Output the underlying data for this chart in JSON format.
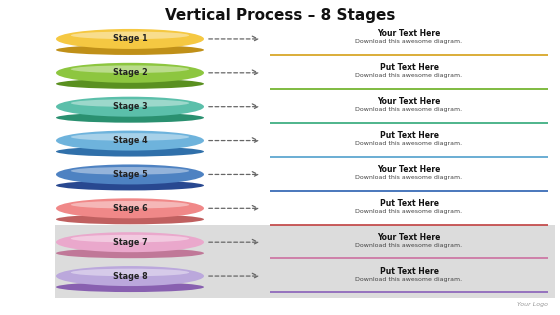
{
  "title": "Vertical Process – 8 Stages",
  "stages": [
    "Stage 1",
    "Stage 2",
    "Stage 3",
    "Stage 4",
    "Stage 5",
    "Stage 6",
    "Stage 7",
    "Stage 8"
  ],
  "ellipse_colors": [
    "#F5C842",
    "#8DC63F",
    "#5BBFAA",
    "#6EB3DC",
    "#4E82C2",
    "#F08888",
    "#EAA8CC",
    "#BBA8DC"
  ],
  "ellipse_shadow_colors": [
    "#C09018",
    "#5A9020",
    "#2A9070",
    "#3070AA",
    "#284890",
    "#C06060",
    "#C07898",
    "#8860B0"
  ],
  "line_colors": [
    "#D4A017",
    "#6AAF20",
    "#30A878",
    "#50A0CC",
    "#2A60B0",
    "#C04040",
    "#CC70A0",
    "#8860B8"
  ],
  "text_titles": [
    "Your Text Here",
    "Put Text Here",
    "Your Text Here",
    "Put Text Here",
    "Your Text Here",
    "Put Text Here",
    "Your Text Here",
    "Put Text Here"
  ],
  "text_sub": "Download this awesome diagram.",
  "bg_color": "#FFFFFF",
  "shadow_band_color": "#DCDCDC",
  "logo_text": "Your Logo",
  "arrow_color": "#666666",
  "title_color": "#111111",
  "stage_label_color": "#222222"
}
